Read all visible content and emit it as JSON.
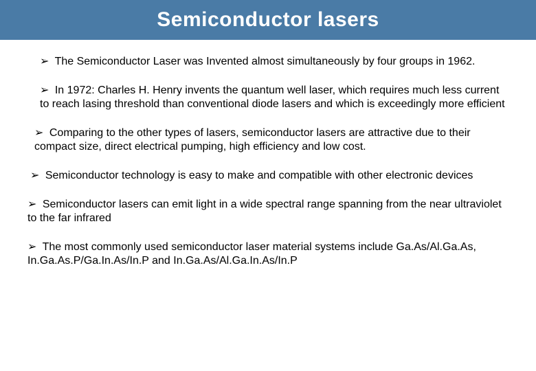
{
  "slide": {
    "title": "Semiconductor lasers",
    "title_bg": "#4a7ba6",
    "title_color": "#ffffff",
    "bullet_glyph": "➢",
    "bullets": [
      {
        "text": "The Semiconductor Laser was Invented almost simultaneously by four groups in 1962.",
        "indent": "indent-1"
      },
      {
        "text": "In 1972: Charles H. Henry invents the quantum well laser, which requires much less current to reach lasing threshold than conventional diode lasers and which is exceedingly more efficient",
        "indent": "indent-1"
      },
      {
        "text": "Comparing to the other types of lasers, semiconductor lasers are attractive due to their compact size, direct electrical pumping, high efficiency and low cost.",
        "indent": "indent-2"
      },
      {
        "text": "Semiconductor technology is easy to make and compatible with other electronic devices",
        "indent": "indent-3"
      },
      {
        "text": "Semiconductor lasers can emit light in a wide spectral range spanning from the near ultraviolet to the far infrared",
        "indent": "indent-4"
      },
      {
        "text": "The most commonly used semiconductor laser material systems include Ga.As/Al.Ga.As, In.Ga.As.P/Ga.In.As/In.P and In.Ga.As/Al.Ga.In.As/In.P",
        "indent": "indent-4"
      }
    ]
  }
}
